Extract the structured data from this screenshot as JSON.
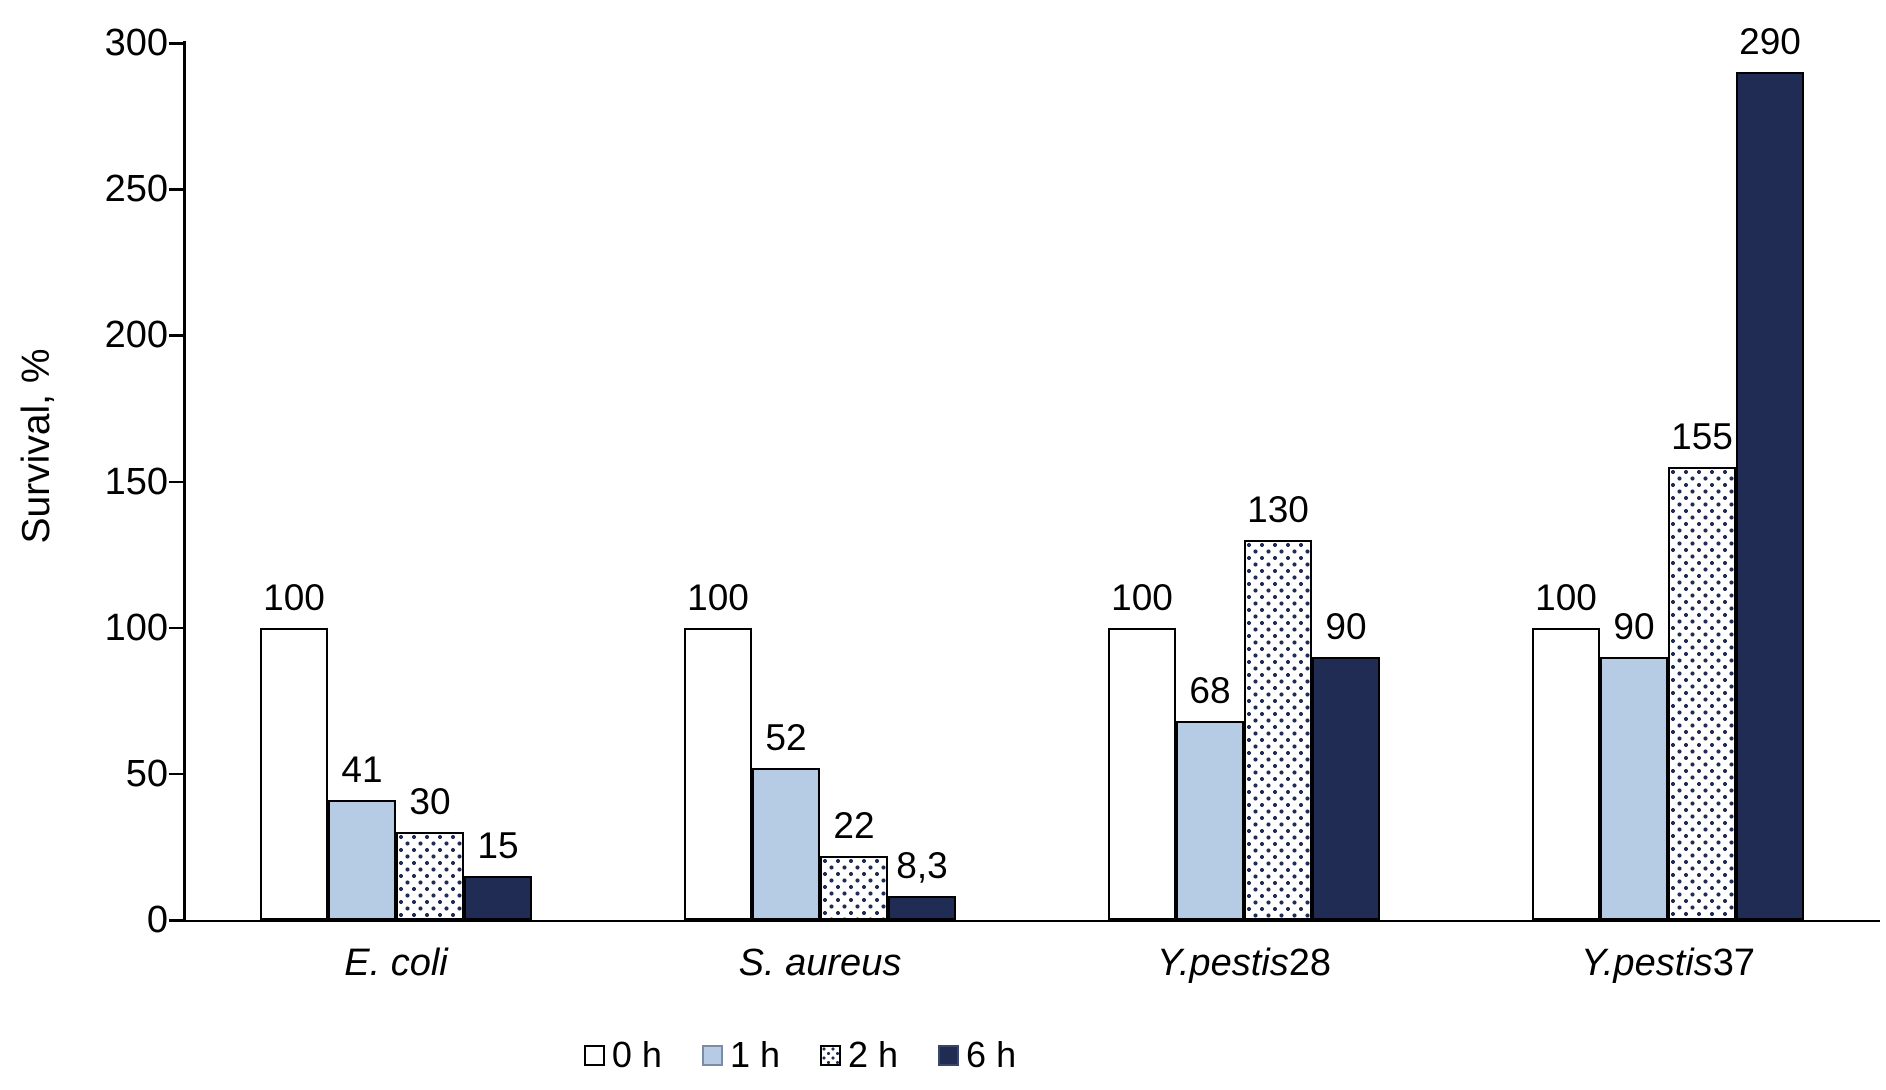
{
  "chart_data": {
    "type": "bar",
    "title": "",
    "ylabel": "Survival, %",
    "xlabel": "",
    "ylim": [
      0,
      300
    ],
    "yticks": [
      "0",
      "50",
      "100",
      "150",
      "200",
      "250",
      "300"
    ],
    "grid": false,
    "legend_position": "bottom",
    "categories": [
      {
        "name": "E. coli",
        "italic": "E. coli",
        "plain": ""
      },
      {
        "name": "S. aureus",
        "italic": "S. aureus",
        "plain": ""
      },
      {
        "name": "Y.pestis28",
        "italic": "Y.pestis",
        "plain": "28"
      },
      {
        "name": "Y.pestis37",
        "italic": "Y.pestis",
        "plain": "37"
      }
    ],
    "series": [
      {
        "name": "0 h",
        "swatch": "white",
        "values": [
          100,
          100,
          100,
          100
        ],
        "labels": [
          "100",
          "100",
          "100",
          "100"
        ]
      },
      {
        "name": "1 h",
        "swatch": "lightblue",
        "values": [
          41,
          52,
          68,
          90
        ],
        "labels": [
          "41",
          "52",
          "68",
          "90"
        ]
      },
      {
        "name": "2 h",
        "swatch": "dotted",
        "values": [
          30,
          22,
          130,
          155
        ],
        "labels": [
          "30",
          "22",
          "130",
          "155"
        ]
      },
      {
        "name": "6 h",
        "swatch": "navy",
        "values": [
          15,
          8.3,
          90,
          290
        ],
        "labels": [
          "15",
          "8,3",
          "90",
          "290"
        ]
      }
    ],
    "colors": {
      "navy": "#202C54",
      "lightblue": "#B6CCE4",
      "white": "#FFFFFF",
      "dot_pattern": "#202C54",
      "axis": "#000000",
      "text": "#000000"
    }
  }
}
